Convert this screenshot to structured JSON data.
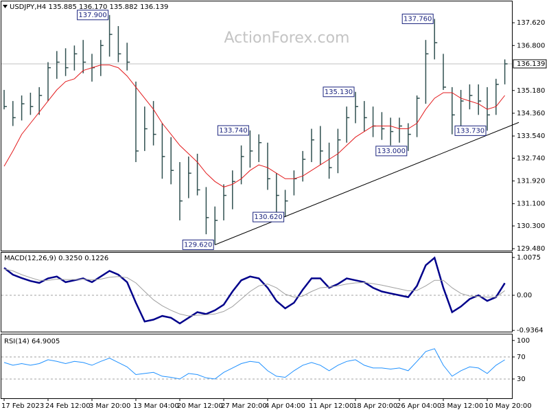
{
  "chart_data": [
    {
      "type": "ohlc",
      "title": "USDJPY,H4  135.885 136.170 135.882 136.139",
      "watermark": "ActionForex.com",
      "color": "#2f4f4f",
      "high": [
        135.2,
        134.8,
        135.0,
        135.1,
        135.3,
        136.2,
        136.6,
        136.7,
        136.8,
        137.0,
        136.5,
        137.0,
        137.9,
        137.5,
        136.9,
        135.5,
        134.6,
        134.8,
        134.0,
        133.5,
        132.6,
        132.8,
        132.9,
        131.7,
        131.0,
        131.8,
        132.3,
        133.2,
        133.74,
        133.6,
        133.3,
        132.2,
        131.6,
        132.3,
        133.0,
        133.8,
        133.9,
        133.3,
        133.8,
        134.6,
        135.13,
        134.8,
        134.6,
        134.4,
        134.2,
        134.2,
        134.0,
        135.0,
        137.0,
        137.76,
        136.5,
        135.3,
        135.2,
        135.4,
        135.4,
        135.3,
        135.6,
        136.3
      ],
      "low": [
        134.5,
        133.9,
        134.1,
        134.3,
        134.3,
        134.8,
        135.6,
        135.7,
        135.9,
        135.8,
        135.5,
        135.7,
        136.4,
        136.2,
        135.9,
        132.6,
        133.0,
        133.2,
        132.0,
        131.8,
        130.5,
        131.3,
        131.4,
        130.0,
        129.62,
        130.5,
        130.9,
        131.8,
        132.4,
        132.6,
        131.6,
        130.8,
        130.62,
        131.4,
        131.9,
        132.6,
        132.5,
        132.0,
        132.2,
        133.3,
        134.0,
        133.7,
        133.5,
        133.4,
        133.2,
        133.3,
        133.0,
        133.5,
        134.7,
        136.3,
        135.2,
        133.6,
        133.8,
        134.5,
        134.3,
        133.73,
        134.3,
        135.4
      ],
      "close": [
        134.6,
        134.2,
        134.7,
        134.6,
        135.0,
        136.0,
        136.2,
        136.0,
        136.5,
        136.2,
        136.0,
        136.8,
        137.2,
        136.5,
        136.2,
        133.0,
        133.8,
        133.6,
        132.8,
        132.3,
        131.2,
        132.2,
        131.6,
        130.6,
        130.5,
        131.4,
        131.9,
        132.8,
        133.0,
        133.3,
        132.0,
        131.4,
        131.2,
        132.0,
        132.7,
        133.4,
        133.0,
        132.4,
        133.4,
        134.2,
        134.6,
        134.2,
        133.9,
        133.8,
        133.7,
        133.9,
        133.6,
        134.9,
        136.5,
        136.9,
        135.3,
        134.3,
        134.8,
        135.0,
        134.8,
        134.3,
        135.4,
        136.139
      ],
      "ma": {
        "color": "#e31a1c",
        "values": [
          132.45,
          133.0,
          133.6,
          134.0,
          134.4,
          134.8,
          135.2,
          135.5,
          135.6,
          135.9,
          136.0,
          136.1,
          136.1,
          136.0,
          135.7,
          135.3,
          134.9,
          134.5,
          134.0,
          133.6,
          133.2,
          132.9,
          132.6,
          132.2,
          131.9,
          131.7,
          131.8,
          132.0,
          132.3,
          132.5,
          132.4,
          132.2,
          132.0,
          132.0,
          132.1,
          132.3,
          132.5,
          132.7,
          132.9,
          133.2,
          133.5,
          133.7,
          133.9,
          133.9,
          133.9,
          133.8,
          133.8,
          134.0,
          134.5,
          134.9,
          135.1,
          135.1,
          134.9,
          134.8,
          134.7,
          134.5,
          134.6,
          135.0
        ]
      },
      "trendline": {
        "x": [
          24,
          58.6
        ],
        "values": [
          129.62,
          134.03
        ]
      },
      "last_price": {
        "value": 136.139,
        "label": "136.139"
      },
      "annotations": [
        {
          "x": 12,
          "value": 137.9,
          "label": "137.900"
        },
        {
          "x": 28,
          "value": 133.74,
          "label": "133.740"
        },
        {
          "x": 24,
          "value": 129.62,
          "label": "129.620"
        },
        {
          "x": 32,
          "value": 130.62,
          "label": "130.620"
        },
        {
          "x": 40,
          "value": 135.13,
          "label": "135.130"
        },
        {
          "x": 46,
          "value": 133.0,
          "label": "133.000"
        },
        {
          "x": 49,
          "value": 137.76,
          "label": "137.760"
        },
        {
          "x": 55,
          "value": 133.73,
          "label": "133.730"
        }
      ],
      "ylim": [
        129.41,
        138.39
      ],
      "yticks": [
        {
          "value": 137.62,
          "label": "137.620"
        },
        {
          "value": 136.8,
          "label": "136.800"
        },
        {
          "value": 135.18,
          "label": "135.180"
        },
        {
          "value": 134.36,
          "label": "134.360"
        },
        {
          "value": 133.54,
          "label": "133.540"
        },
        {
          "value": 132.74,
          "label": "132.740"
        },
        {
          "value": 131.92,
          "label": "131.920"
        },
        {
          "value": 131.1,
          "label": "131.100"
        },
        {
          "value": 130.3,
          "label": "130.300"
        },
        {
          "value": 129.48,
          "label": "129.480"
        }
      ]
    },
    {
      "type": "line",
      "title": "MACD(12,26,9) 0.3250 0.1226",
      "series": [
        {
          "color": "#00008b",
          "values": [
            0.73,
            0.55,
            0.46,
            0.38,
            0.33,
            0.45,
            0.5,
            0.35,
            0.4,
            0.45,
            0.35,
            0.5,
            0.65,
            0.55,
            0.35,
            -0.2,
            -0.7,
            -0.65,
            -0.55,
            -0.6,
            -0.75,
            -0.6,
            -0.45,
            -0.5,
            -0.4,
            -0.25,
            0.1,
            0.4,
            0.5,
            0.45,
            0.2,
            -0.15,
            -0.35,
            -0.2,
            0.15,
            0.45,
            0.45,
            0.2,
            0.3,
            0.45,
            0.4,
            0.35,
            0.2,
            0.1,
            0.05,
            0.0,
            -0.05,
            0.25,
            0.8,
            1.0,
            0.2,
            -0.45,
            -0.3,
            -0.1,
            0.0,
            -0.15,
            -0.05,
            0.325
          ]
        },
        {
          "color": "#a0a0a0",
          "values": [
            0.7,
            0.65,
            0.55,
            0.47,
            0.4,
            0.4,
            0.43,
            0.42,
            0.42,
            0.43,
            0.41,
            0.43,
            0.48,
            0.5,
            0.47,
            0.33,
            0.1,
            -0.12,
            -0.28,
            -0.4,
            -0.5,
            -0.55,
            -0.53,
            -0.52,
            -0.5,
            -0.43,
            -0.3,
            -0.1,
            0.1,
            0.25,
            0.3,
            0.2,
            0.03,
            -0.05,
            -0.02,
            0.1,
            0.2,
            0.22,
            0.25,
            0.3,
            0.33,
            0.34,
            0.31,
            0.27,
            0.22,
            0.17,
            0.12,
            0.13,
            0.25,
            0.4,
            0.4,
            0.2,
            0.05,
            -0.02,
            -0.03,
            -0.05,
            -0.05,
            0.1226
          ]
        }
      ],
      "hlines": [
        0
      ],
      "ylim": [
        -0.97,
        1.135
      ],
      "yticks": [
        1.0075,
        {
          "value": 0,
          "label": "0.00"
        },
        -0.9364
      ]
    },
    {
      "type": "line",
      "title": "RSI(14) 64.9005",
      "categories": [
        "17 Feb 2023",
        null,
        null,
        null,
        null,
        "24 Feb 12:00",
        null,
        null,
        null,
        null,
        "3 Mar 20:00",
        null,
        null,
        null,
        null,
        "13 Mar 04:00",
        null,
        null,
        null,
        null,
        "20 Mar 12:00",
        null,
        null,
        null,
        null,
        "27 Mar 20:00",
        null,
        null,
        null,
        null,
        "4 Apr 04:00",
        null,
        null,
        null,
        null,
        "11 Apr 12:00",
        null,
        null,
        null,
        null,
        "18 Apr 20:00",
        null,
        null,
        null,
        null,
        "26 Apr 04:00",
        null,
        null,
        null,
        null,
        "3 May 12:00",
        null,
        null,
        null,
        null,
        "10 May 20:00",
        null,
        null
      ],
      "series": [
        {
          "color": "#1e90ff",
          "values": [
            60,
            55,
            58,
            55,
            58,
            65,
            62,
            58,
            62,
            60,
            55,
            62,
            68,
            60,
            52,
            38,
            40,
            42,
            35,
            33,
            30,
            40,
            38,
            32,
            30,
            42,
            50,
            58,
            62,
            60,
            45,
            35,
            33,
            45,
            55,
            60,
            55,
            45,
            55,
            62,
            65,
            55,
            50,
            50,
            48,
            50,
            45,
            62,
            80,
            85,
            55,
            35,
            45,
            52,
            50,
            40,
            55,
            64.9005
          ]
        }
      ],
      "hlines": [
        70,
        30
      ],
      "ylim": [
        -5,
        111
      ],
      "yticks": [
        100,
        70,
        30
      ]
    }
  ]
}
